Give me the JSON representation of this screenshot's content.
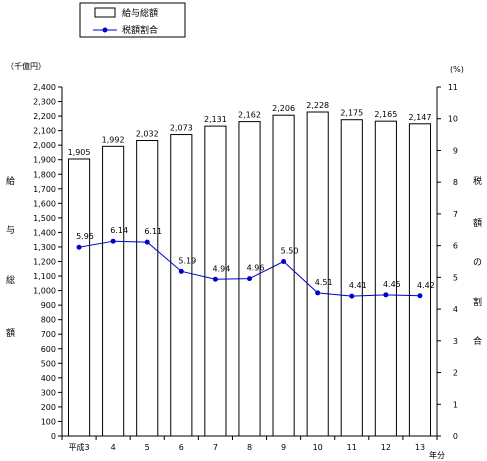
{
  "chart_data": {
    "type": "bar",
    "categories": [
      "平成3",
      "4",
      "5",
      "6",
      "7",
      "8",
      "9",
      "10",
      "11",
      "12",
      "13"
    ],
    "category_suffix": "年分",
    "series": [
      {
        "name": "給与総額",
        "type": "bar",
        "axis": "left",
        "values": [
          1905,
          1992,
          2032,
          2073,
          2131,
          2162,
          2206,
          2228,
          2175,
          2165,
          2147
        ],
        "labels": [
          "1,905",
          "1,992",
          "2,032",
          "2,073",
          "2,131",
          "2,162",
          "2,206",
          "2,228",
          "2,175",
          "2,165",
          "2,147"
        ]
      },
      {
        "name": "税額割合",
        "type": "line",
        "axis": "right",
        "color": "#0000cc",
        "values": [
          5.95,
          6.14,
          6.11,
          5.19,
          4.94,
          4.96,
          5.5,
          4.51,
          4.41,
          4.45,
          4.42
        ],
        "labels": [
          "5.95",
          "6.14",
          "6.11",
          "5.19",
          "4.94",
          "4.96",
          "5.50",
          "4.51",
          "4.41",
          "4.45",
          "4.42"
        ]
      }
    ],
    "ylim": [
      0,
      2400
    ],
    "y_step": 100,
    "y2lim": [
      0,
      11
    ],
    "y2_step": 1,
    "y_unit": "（千億円）",
    "y2_unit": "(%)",
    "ylabel_chars": [
      "給",
      "与",
      "総",
      "額"
    ],
    "y2label_chars": [
      "税",
      "額",
      "の",
      "割",
      "合"
    ],
    "legend_position": "top",
    "grid": false
  }
}
